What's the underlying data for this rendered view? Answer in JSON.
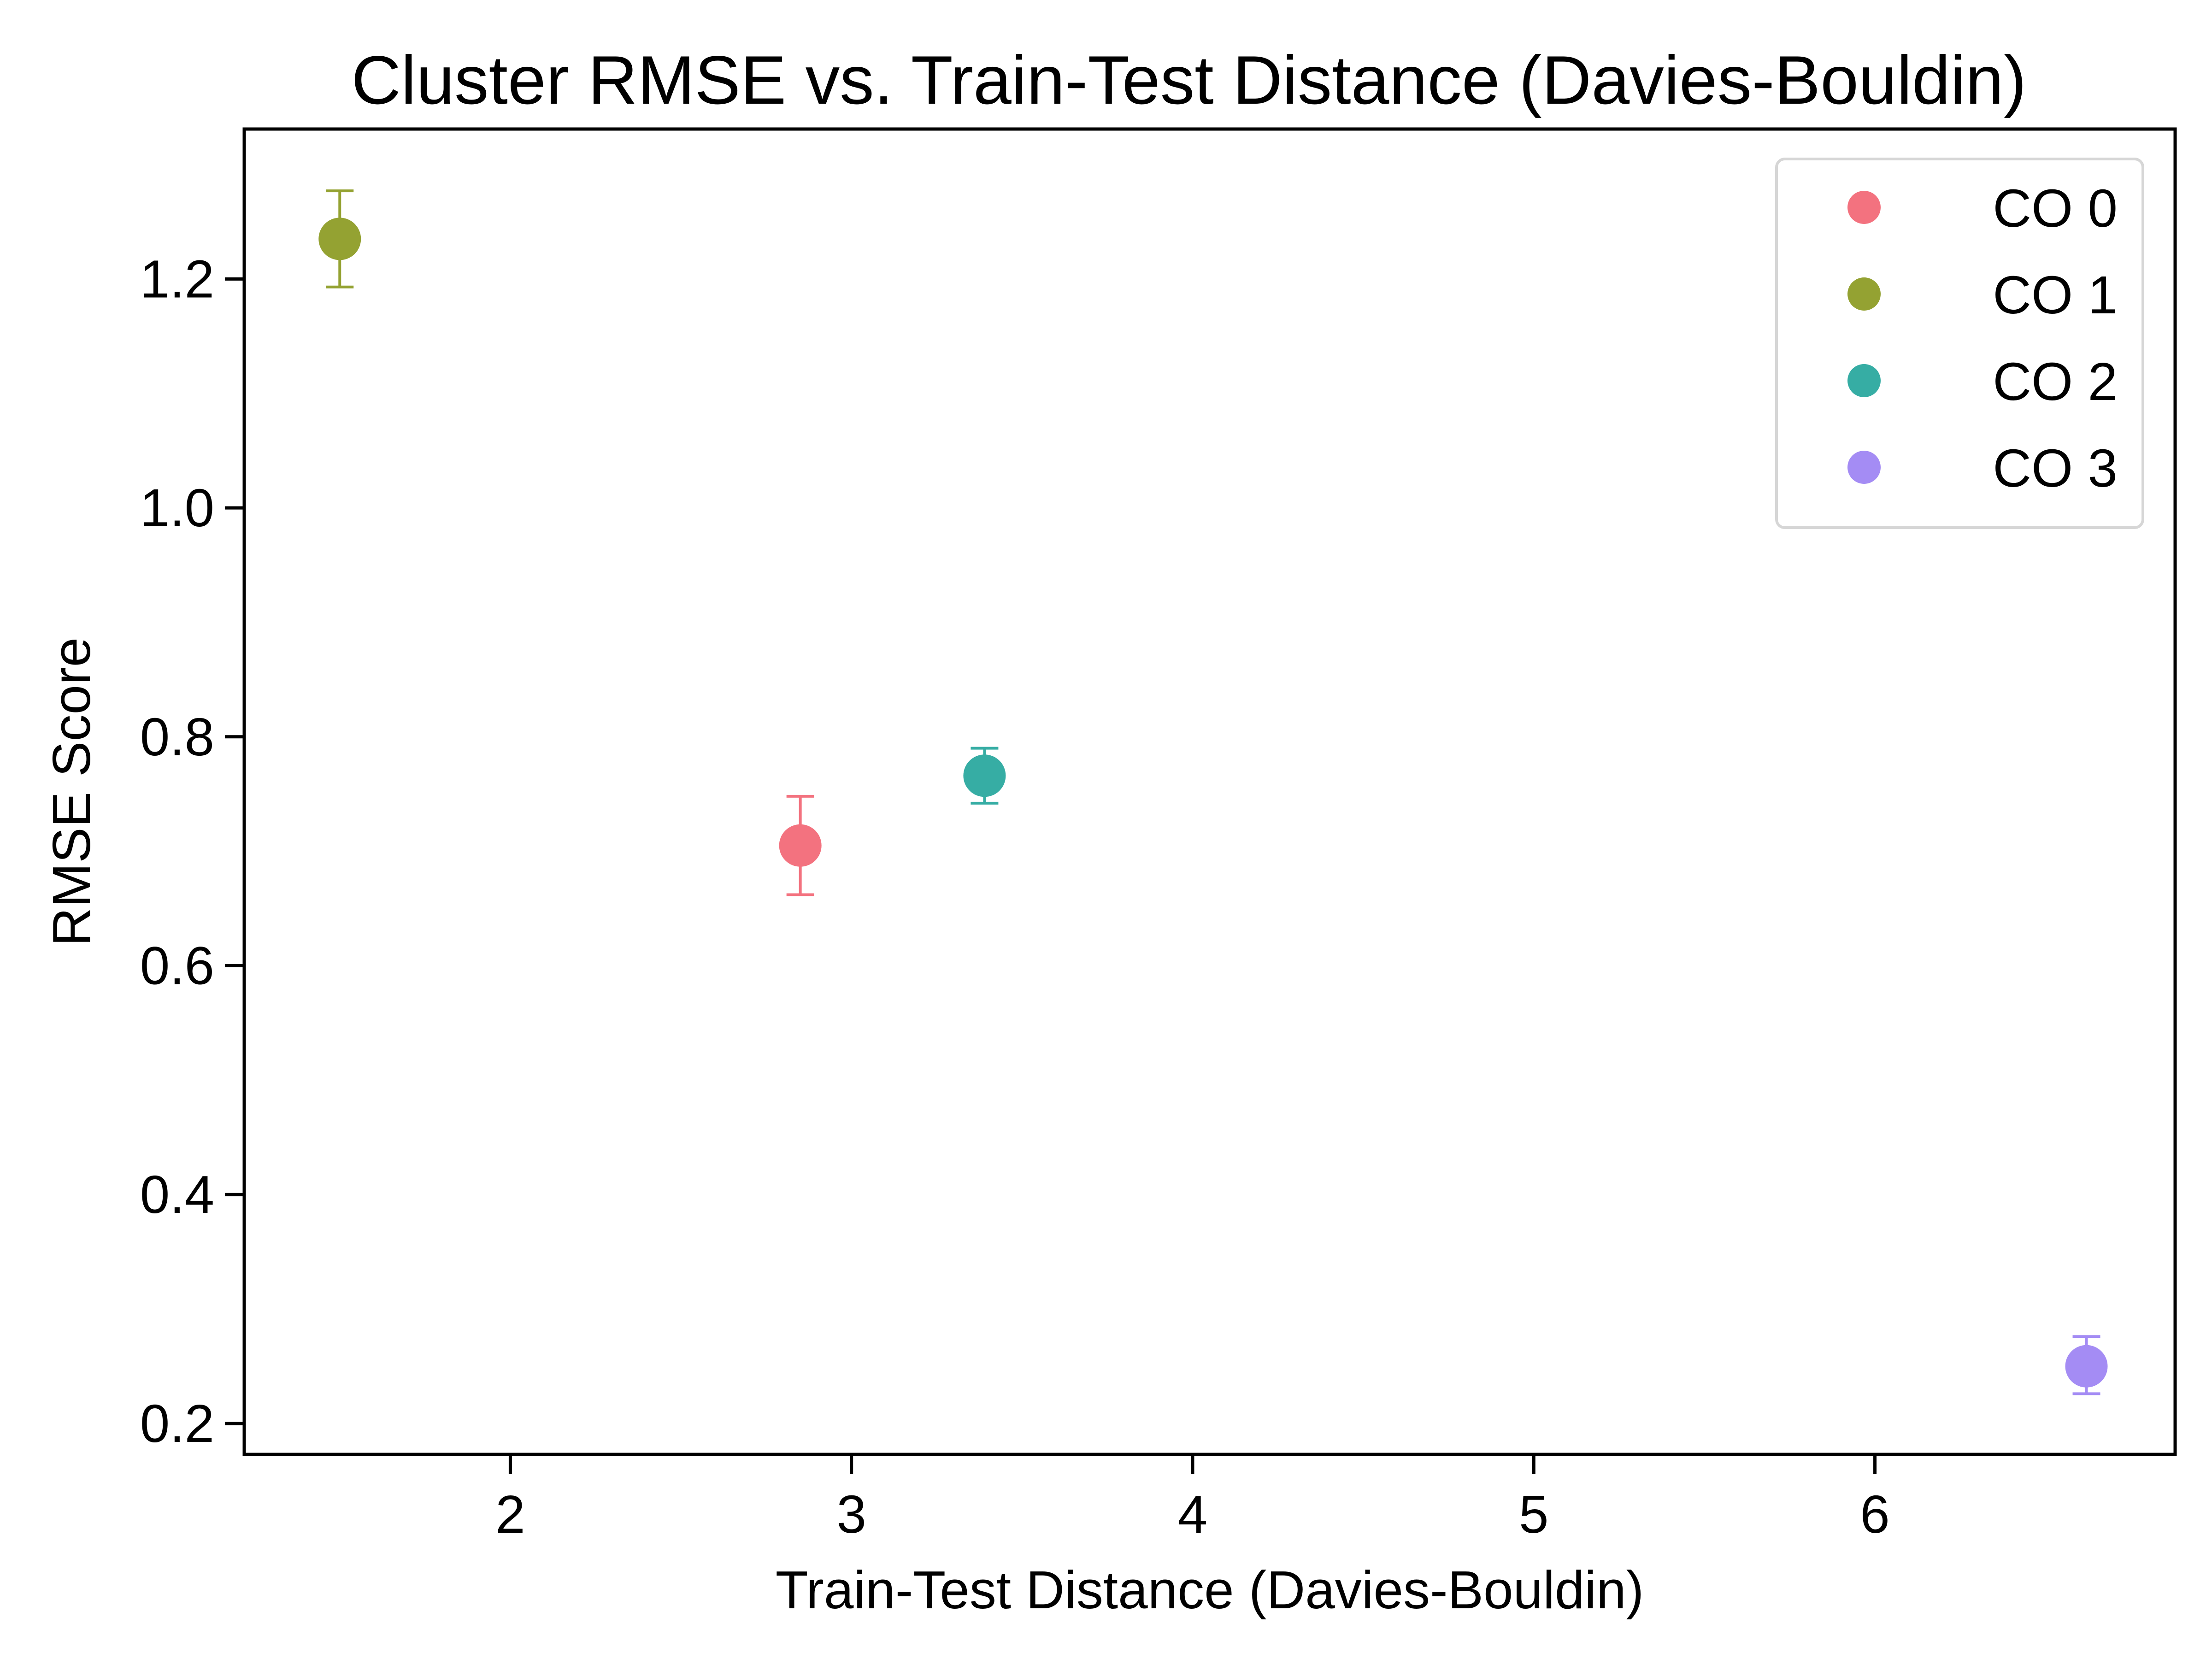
{
  "chart_data": {
    "type": "scatter",
    "title": "Cluster RMSE vs. Train-Test Distance (Davies-Bouldin)",
    "xlabel": "Train-Test Distance (Davies-Bouldin)",
    "ylabel": "RMSE Score",
    "xlim": [
      1.22,
      6.88
    ],
    "ylim": [
      0.173,
      1.331
    ],
    "xticks": [
      2,
      3,
      4,
      5,
      6
    ],
    "xtick_labels": [
      "2",
      "3",
      "4",
      "5",
      "6"
    ],
    "yticks": [
      0.2,
      0.4,
      0.6,
      0.8,
      1.0,
      1.2
    ],
    "ytick_labels": [
      "0.2",
      "0.4",
      "0.6",
      "0.8",
      "1.0",
      "1.2"
    ],
    "grid": false,
    "legend": "top-right",
    "series": [
      {
        "name": "CO 0",
        "color": "#f3727f",
        "x": 2.85,
        "y": 0.705,
        "yerr_low": 0.662,
        "yerr_high": 0.748
      },
      {
        "name": "CO 1",
        "color": "#94a232",
        "x": 1.5,
        "y": 1.235,
        "yerr_low": 1.193,
        "yerr_high": 1.277
      },
      {
        "name": "CO 2",
        "color": "#36ada4",
        "x": 3.39,
        "y": 0.766,
        "yerr_low": 0.742,
        "yerr_high": 0.79
      },
      {
        "name": "CO 3",
        "color": "#a48cf4",
        "x": 6.62,
        "y": 0.25,
        "yerr_low": 0.226,
        "yerr_high": 0.276
      }
    ]
  }
}
